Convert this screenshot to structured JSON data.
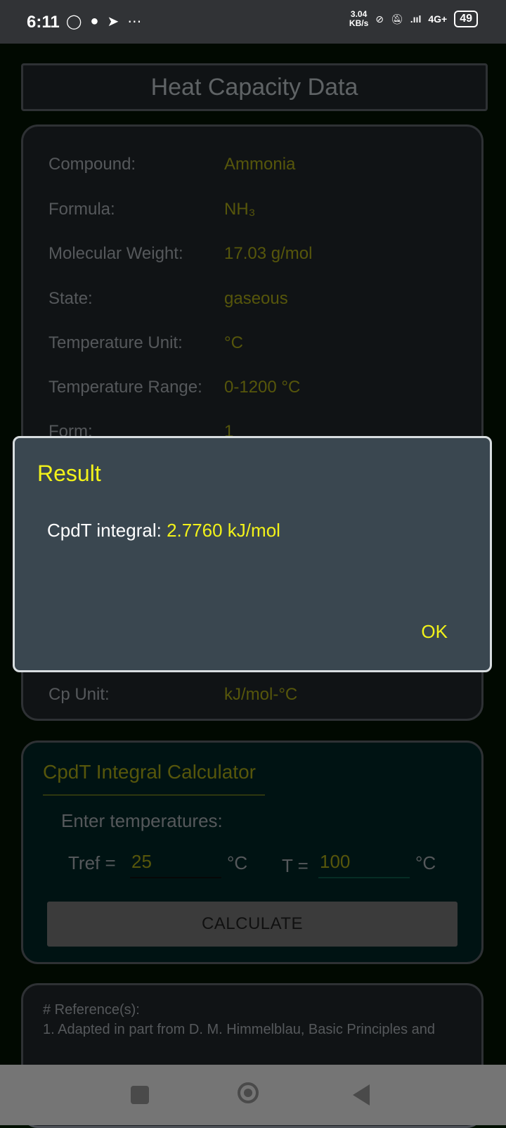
{
  "status_bar": {
    "time": "6:11",
    "left_icons": [
      "whatsapp-icon",
      "facebook-icon",
      "send-icon",
      "more-dots-icon"
    ],
    "speed_value": "3.04",
    "speed_unit": "KB/s",
    "network": "4G+",
    "battery": "49"
  },
  "page": {
    "title": "Heat Capacity Data"
  },
  "info": {
    "rows": [
      {
        "label": "Compound:",
        "value": "Ammonia"
      },
      {
        "label": "Formula:",
        "value": "NH₃"
      },
      {
        "label": "Molecular Weight:",
        "value": "17.03 g/mol"
      },
      {
        "label": "State:",
        "value": "gaseous"
      },
      {
        "label": "Temperature Unit:",
        "value": "°C"
      },
      {
        "label": "Temperature Range:",
        "value": "0-1200 °C"
      },
      {
        "label": "Form:",
        "value": "1"
      }
    ],
    "cp_unit": {
      "label": "Cp Unit:",
      "value": "kJ/mol-°C"
    }
  },
  "calculator": {
    "title": "CpdT Integral Calculator",
    "prompt": "Enter temperatures:",
    "tref_label": "Tref =",
    "tref_value": "25",
    "tref_unit": "°C",
    "t_label": "T =",
    "t_value": "100",
    "t_unit": "°C",
    "button": "CALCULATE"
  },
  "reference": {
    "header": "# Reference(s):",
    "line1": "1. Adapted in part from D. M. Himmelblau, Basic Principles and"
  },
  "dialog": {
    "title": "Result",
    "message_label": "CpdT integral: ",
    "message_value": "2.7760 kJ/mol",
    "ok": "OK"
  },
  "colors": {
    "accent_yellow": "#f2f21a",
    "olive_value": "#8b8b12",
    "dialog_bg": "#3a4750"
  }
}
